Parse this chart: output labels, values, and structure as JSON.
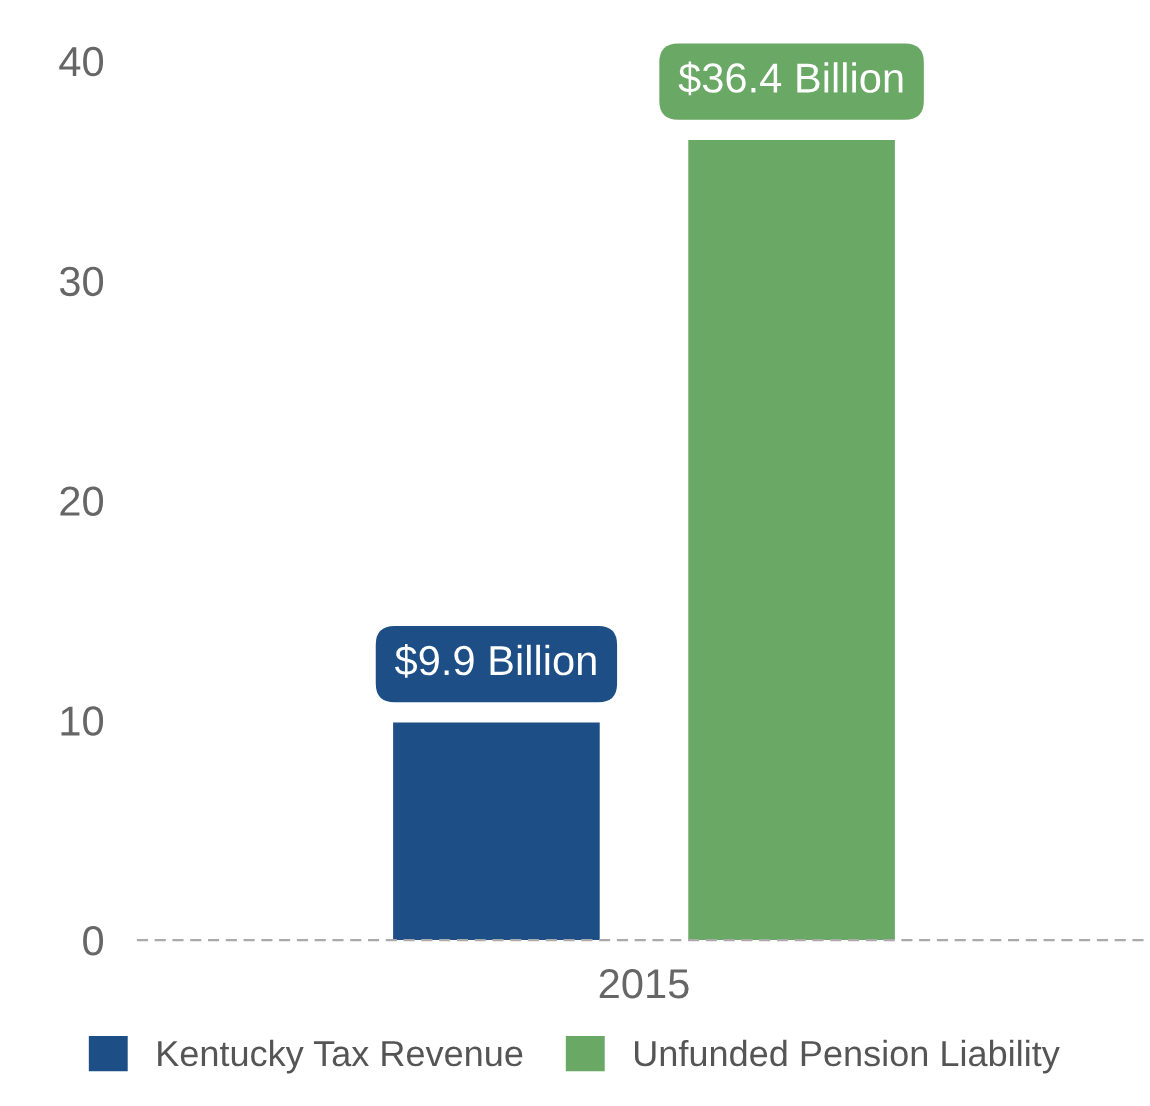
{
  "chart_data": {
    "type": "bar",
    "categories": [
      "2015"
    ],
    "series": [
      {
        "name": "Kentucky Tax Revenue",
        "color": "#1d4f86",
        "values": [
          9.9
        ],
        "value_labels": [
          "$9.9 Billion"
        ]
      },
      {
        "name": "Unfunded Pension Liability",
        "color": "#6aa865",
        "values": [
          36.4
        ],
        "value_labels": [
          "$36.4 Billion"
        ]
      }
    ],
    "ylim": [
      0,
      40
    ],
    "yticks": [
      0,
      10,
      20,
      30,
      40
    ],
    "grid": false,
    "legend": "bottom"
  }
}
